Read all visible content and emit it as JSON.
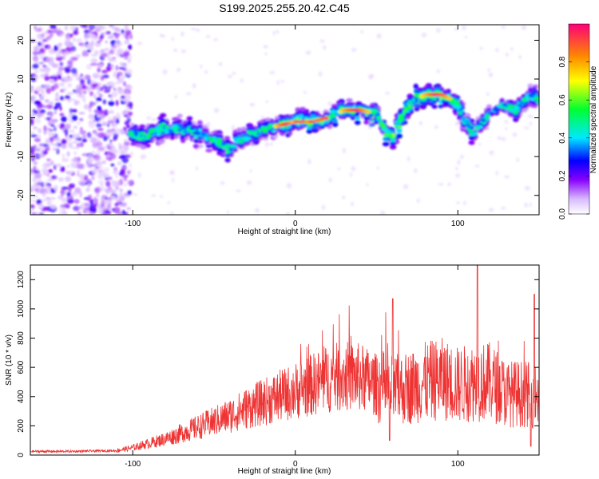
{
  "title": "S199.2025.255.20.42.C45",
  "chart_data": [
    {
      "type": "heatmap",
      "title": "S199.2025.255.20.42.C45",
      "xlabel": "Height of straight line (km)",
      "ylabel": "Frequency (Hz)",
      "xlim": [
        -163,
        150
      ],
      "ylim": [
        -25,
        24
      ],
      "xticks": [
        -100,
        0,
        100
      ],
      "yticks": [
        -20,
        -10,
        0,
        10,
        20
      ],
      "colorbar": {
        "label": "Normalized spectral amplitude",
        "range": [
          0,
          1
        ],
        "ticks": [
          0.0,
          0.2,
          0.4,
          0.6,
          0.8
        ]
      },
      "ridge": {
        "x": [
          -102,
          -95,
          -85,
          -75,
          -65,
          -55,
          -45,
          -40,
          -35,
          -30,
          -20,
          -10,
          0,
          10,
          20,
          30,
          40,
          50,
          55,
          60,
          65,
          70,
          75,
          80,
          85,
          90,
          95,
          100,
          105,
          110,
          115,
          120,
          125,
          130,
          135,
          140,
          145,
          150
        ],
        "y": [
          -4,
          -5,
          -3,
          -3,
          -3,
          -5,
          -7,
          -8,
          -6,
          -5,
          -3,
          -2,
          -1,
          -1,
          0,
          2,
          2,
          1,
          -3,
          -5,
          0,
          3,
          5,
          6,
          6,
          6,
          5,
          3,
          -1,
          -4,
          -1,
          1,
          3,
          3,
          2,
          4,
          6,
          4
        ]
      }
    },
    {
      "type": "line",
      "xlabel": "Height of straight line (km)",
      "ylabel": "SNR (10 * v/v)",
      "xlim": [
        -163,
        150
      ],
      "ylim": [
        0,
        1300
      ],
      "xticks": [
        -100,
        0,
        100
      ],
      "yticks": [
        0,
        200,
        400,
        600,
        800,
        1000,
        1200
      ],
      "series": [
        {
          "name": "SNR",
          "color": "#ee3333",
          "envelope_x": [
            -163,
            -140,
            -110,
            -100,
            -90,
            -80,
            -70,
            -60,
            -50,
            -40,
            -30,
            -20,
            -10,
            0,
            10,
            20,
            30,
            40,
            50,
            60,
            70,
            80,
            90,
            100,
            110,
            120,
            130,
            140,
            150
          ],
          "envelope_y": [
            25,
            25,
            30,
            50,
            80,
            110,
            150,
            190,
            230,
            270,
            320,
            360,
            400,
            440,
            480,
            520,
            540,
            530,
            480,
            440,
            460,
            500,
            520,
            480,
            500,
            500,
            420,
            420,
            400
          ],
          "peaks": [
            {
              "x": 60,
              "y": 1070
            },
            {
              "x": 112,
              "y": 1300
            },
            {
              "x": 147,
              "y": 1100
            },
            {
              "x": 58,
              "y": 100
            },
            {
              "x": 145,
              "y": 60
            }
          ]
        }
      ]
    }
  ]
}
